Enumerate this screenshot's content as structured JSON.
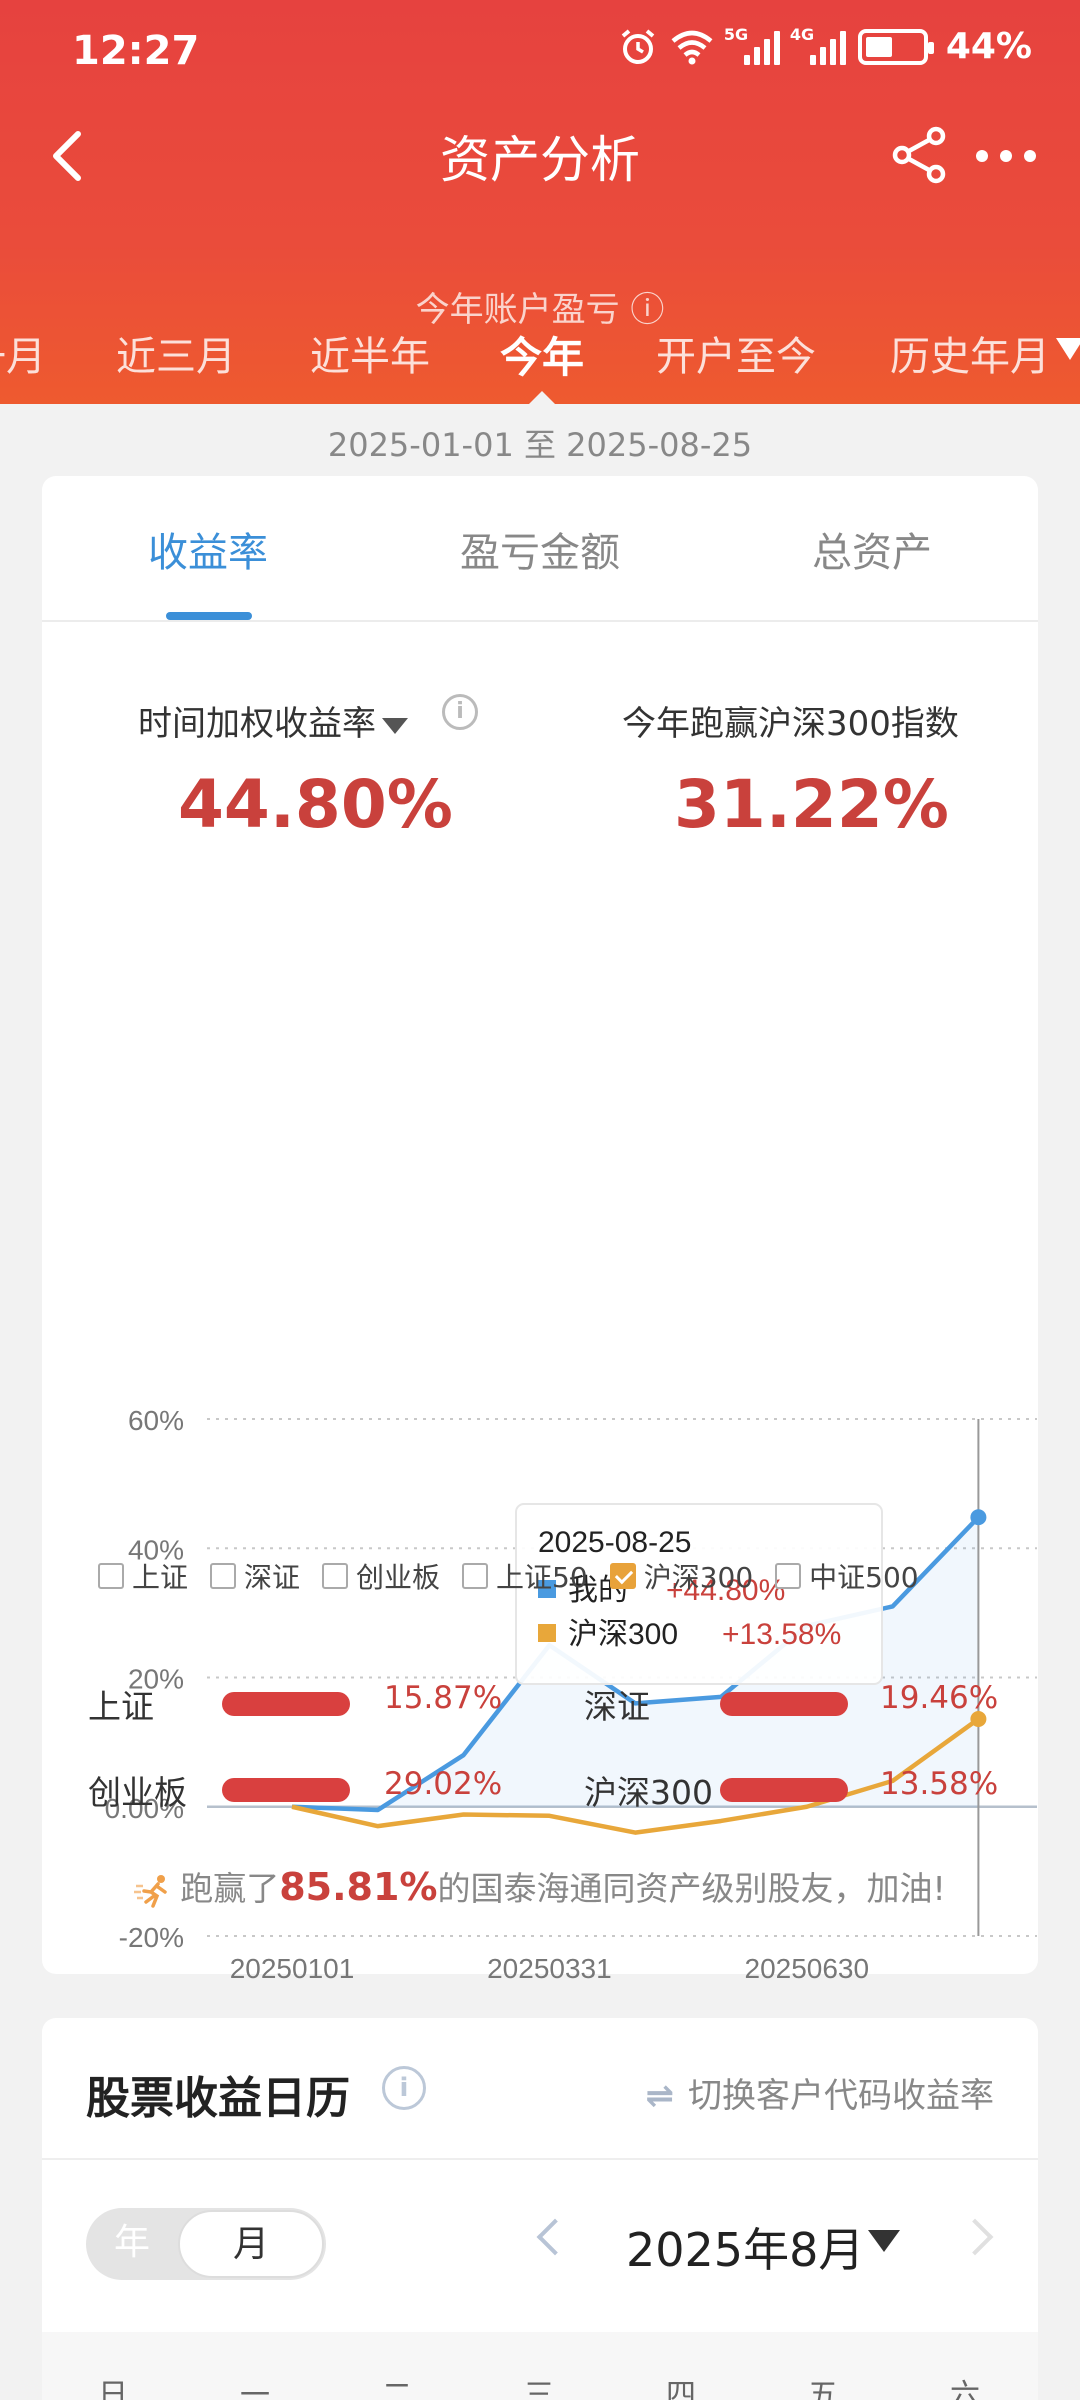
{
  "status_bar": {
    "time": "12:27",
    "net1": "5G",
    "net2": "4G",
    "battery": "44%"
  },
  "nav": {
    "title": "资产分析"
  },
  "peek_text": "今年账户盈亏 ⓘ",
  "period_tabs": [
    "一月",
    "近三月",
    "近半年",
    "今年",
    "开户至今",
    "历史年月"
  ],
  "active_period": "今年",
  "date_range": "2025-01-01 至 2025-08-25",
  "metric_tabs": [
    "收益率",
    "盈亏金额",
    "总资产"
  ],
  "active_metric": "收益率",
  "metric_left_label": "时间加权收益率",
  "metric_left_value": "44.80%",
  "metric_right_label": "今年跑赢沪深300指数",
  "metric_right_value": "31.22%",
  "chart_data": {
    "type": "line",
    "x": [
      "20250101",
      "20250131",
      "20250228",
      "20250331",
      "20250430",
      "20250531",
      "20250630",
      "20250731",
      "20250825"
    ],
    "x_tick_labels": [
      "20250101",
      "20250331",
      "20250630"
    ],
    "y_tick_labels": [
      "60%",
      "40%",
      "20%",
      "0.00%",
      "-20%"
    ],
    "ylim": [
      -20,
      60
    ],
    "grid": true,
    "series": [
      {
        "name": "我的",
        "color": "#4a9ae0",
        "values": [
          0,
          -0.5,
          8,
          25,
          16,
          17,
          28,
          31,
          44.8
        ]
      },
      {
        "name": "沪深300",
        "color": "#e8a73a",
        "values": [
          0,
          -3,
          -1.2,
          -1.4,
          -4,
          -2.2,
          0,
          4,
          13.58
        ]
      }
    ],
    "tooltip": {
      "date": "2025-08-25",
      "rows": [
        {
          "name": "我的",
          "value": "+44.80%",
          "color": "#4a9ae0"
        },
        {
          "name": "沪深300",
          "value": "+13.58%",
          "color": "#e8a73a"
        }
      ]
    }
  },
  "legend_checkboxes": [
    {
      "label": "上证",
      "checked": false
    },
    {
      "label": "深证",
      "checked": false
    },
    {
      "label": "创业板",
      "checked": false
    },
    {
      "label": "上证50",
      "checked": false
    },
    {
      "label": "沪深300",
      "checked": true
    },
    {
      "label": "中证500",
      "checked": false
    }
  ],
  "index_returns": [
    {
      "name": "上证",
      "value": "15.87%"
    },
    {
      "name": "深证",
      "value": "19.46%"
    },
    {
      "name": "创业板",
      "value": "29.02%"
    },
    {
      "name": "沪深300",
      "value": "13.58%"
    }
  ],
  "beat": {
    "prefix": "跑赢了",
    "percent": "85.81%",
    "suffix": "的国泰海通同资产级别股友，加油!"
  },
  "calendar": {
    "title": "股票收益日历",
    "switch_label": "切换客户代码收益率",
    "seg_year": "年",
    "seg_month": "月",
    "month_label": "2025年8月",
    "weekdays": [
      "日",
      "一",
      "二",
      "三",
      "四",
      "五",
      "六"
    ]
  }
}
